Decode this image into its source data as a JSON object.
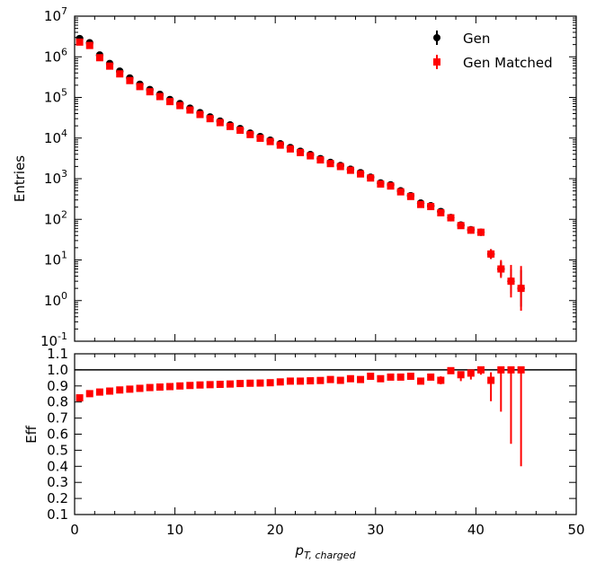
{
  "chart_data": [
    {
      "type": "scatter",
      "subtype": "errorbar",
      "panel": "top",
      "ylabel": "Entries",
      "yscale": "log",
      "xlim": [
        0,
        50
      ],
      "ylim": [
        0.1,
        10000000
      ],
      "ytick_exponents": [
        -1,
        0,
        1,
        2,
        3,
        4,
        5,
        6,
        7
      ],
      "ytick_base": "10",
      "legend_position": "top-right",
      "series": [
        {
          "name": "Gen",
          "color": "#000000",
          "marker": "circle",
          "x": [
            0.5,
            1.5,
            2.5,
            3.5,
            4.5,
            5.5,
            6.5,
            7.5,
            8.5,
            9.5,
            10.5,
            11.5,
            12.5,
            13.5,
            14.5,
            15.5,
            16.5,
            17.5,
            18.5,
            19.5,
            20.5,
            21.5,
            22.5,
            23.5,
            24.5,
            25.5,
            26.5,
            27.5,
            28.5,
            29.5,
            30.5,
            31.5,
            32.5,
            33.5,
            34.5,
            35.5,
            36.5,
            37.5,
            38.5,
            39.5,
            40.5,
            41.5,
            42.5,
            43.5,
            44.5
          ],
          "y": [
            2800000,
            2200000,
            1100000,
            680000,
            440000,
            300000,
            210000,
            155000,
            118000,
            88000,
            70000,
            54000,
            42000,
            33000,
            26000,
            21000,
            17000,
            13200,
            10800,
            8800,
            7200,
            5800,
            4700,
            3900,
            3100,
            2500,
            2100,
            1700,
            1400,
            1080,
            780,
            700,
            500,
            380,
            250,
            215,
            155,
            110,
            72,
            55,
            48,
            14,
            6,
            3,
            2
          ],
          "yerr_log": [
            0.02,
            0.02,
            0.02,
            0.02,
            0.02,
            0.02,
            0.02,
            0.02,
            0.02,
            0.02,
            0.02,
            0.02,
            0.02,
            0.02,
            0.02,
            0.02,
            0.02,
            0.02,
            0.02,
            0.02,
            0.02,
            0.02,
            0.02,
            0.02,
            0.02,
            0.02,
            0.02,
            0.02,
            0.02,
            0.02,
            0.02,
            0.02,
            0.02,
            0.02,
            0.03,
            0.03,
            0.04,
            0.04,
            0.05,
            0.06,
            0.06,
            0.12,
            0.18,
            0.3,
            0.45
          ]
        },
        {
          "name": "Gen Matched",
          "color": "#ff0000",
          "marker": "square",
          "x": [
            0.5,
            1.5,
            2.5,
            3.5,
            4.5,
            5.5,
            6.5,
            7.5,
            8.5,
            9.5,
            10.5,
            11.5,
            12.5,
            13.5,
            14.5,
            15.5,
            16.5,
            17.5,
            18.5,
            19.5,
            20.5,
            21.5,
            22.5,
            23.5,
            24.5,
            25.5,
            26.5,
            27.5,
            28.5,
            29.5,
            30.5,
            31.5,
            32.5,
            33.5,
            34.5,
            35.5,
            36.5,
            37.5,
            38.5,
            39.5,
            40.5,
            41.5,
            42.5,
            43.5,
            44.5
          ],
          "y": [
            2300000,
            1900000,
            950000,
            590000,
            380000,
            260000,
            185000,
            138000,
            105000,
            79000,
            63000,
            49000,
            38000,
            30000,
            24000,
            19300,
            15600,
            12200,
            9900,
            8200,
            6700,
            5400,
            4400,
            3650,
            2900,
            2350,
            1990,
            1610,
            1310,
            1040,
            740,
            660,
            475,
            365,
            232,
            206,
            145,
            109,
            70,
            54,
            48,
            14,
            6,
            3,
            2
          ],
          "yerr_log": [
            0.02,
            0.02,
            0.02,
            0.02,
            0.02,
            0.02,
            0.02,
            0.02,
            0.02,
            0.02,
            0.02,
            0.02,
            0.02,
            0.02,
            0.02,
            0.02,
            0.02,
            0.02,
            0.02,
            0.02,
            0.02,
            0.02,
            0.02,
            0.02,
            0.02,
            0.02,
            0.02,
            0.02,
            0.02,
            0.02,
            0.02,
            0.02,
            0.02,
            0.02,
            0.03,
            0.03,
            0.04,
            0.04,
            0.05,
            0.06,
            0.06,
            0.12,
            0.22,
            0.4,
            0.55
          ]
        }
      ]
    },
    {
      "type": "scatter",
      "subtype": "errorbar",
      "panel": "bottom",
      "xlabel_main": "p",
      "xlabel_sub": "T, charged",
      "ylabel": "Eff",
      "xlim": [
        0,
        50
      ],
      "ylim": [
        0.1,
        1.1
      ],
      "xticks": [
        0,
        10,
        20,
        30,
        40,
        50
      ],
      "yticks": [
        "0.1",
        "0.2",
        "0.3",
        "0.4",
        "0.5",
        "0.6",
        "0.7",
        "0.8",
        "0.9",
        "1.0",
        "1.1"
      ],
      "reference_line": 1.0,
      "series": [
        {
          "name": "Eff",
          "color": "#ff0000",
          "marker": "square",
          "x": [
            0.5,
            1.5,
            2.5,
            3.5,
            4.5,
            5.5,
            6.5,
            7.5,
            8.5,
            9.5,
            10.5,
            11.5,
            12.5,
            13.5,
            14.5,
            15.5,
            16.5,
            17.5,
            18.5,
            19.5,
            20.5,
            21.5,
            22.5,
            23.5,
            24.5,
            25.5,
            26.5,
            27.5,
            28.5,
            29.5,
            30.5,
            31.5,
            32.5,
            33.5,
            34.5,
            35.5,
            36.5,
            37.5,
            38.5,
            39.5,
            40.5,
            41.5,
            42.5,
            43.5,
            44.5
          ],
          "y": [
            0.826,
            0.852,
            0.862,
            0.868,
            0.875,
            0.88,
            0.885,
            0.89,
            0.893,
            0.896,
            0.9,
            0.903,
            0.906,
            0.908,
            0.91,
            0.912,
            0.915,
            0.917,
            0.918,
            0.92,
            0.925,
            0.93,
            0.93,
            0.932,
            0.934,
            0.94,
            0.935,
            0.945,
            0.94,
            0.96,
            0.945,
            0.955,
            0.955,
            0.96,
            0.93,
            0.955,
            0.935,
            0.995,
            0.97,
            0.98,
            1.0,
            0.935,
            1.0,
            1.0,
            1.0
          ],
          "yerr_low": [
            0.003,
            0.003,
            0.003,
            0.003,
            0.003,
            0.003,
            0.003,
            0.003,
            0.003,
            0.003,
            0.003,
            0.003,
            0.003,
            0.003,
            0.004,
            0.004,
            0.004,
            0.004,
            0.005,
            0.005,
            0.005,
            0.006,
            0.006,
            0.007,
            0.008,
            0.008,
            0.01,
            0.01,
            0.01,
            0.012,
            0.015,
            0.015,
            0.015,
            0.015,
            0.02,
            0.02,
            0.025,
            0.02,
            0.04,
            0.04,
            0.03,
            0.13,
            0.26,
            0.46,
            0.6
          ],
          "yerr_high": [
            0.003,
            0.003,
            0.003,
            0.003,
            0.003,
            0.003,
            0.003,
            0.003,
            0.003,
            0.003,
            0.003,
            0.003,
            0.003,
            0.003,
            0.004,
            0.004,
            0.004,
            0.004,
            0.005,
            0.005,
            0.005,
            0.006,
            0.006,
            0.007,
            0.008,
            0.008,
            0.01,
            0.01,
            0.01,
            0.012,
            0.015,
            0.015,
            0.015,
            0.015,
            0.02,
            0.02,
            0.025,
            0.005,
            0.02,
            0.015,
            0.0,
            0.05,
            0.0,
            0.0,
            0.0
          ]
        }
      ]
    }
  ]
}
